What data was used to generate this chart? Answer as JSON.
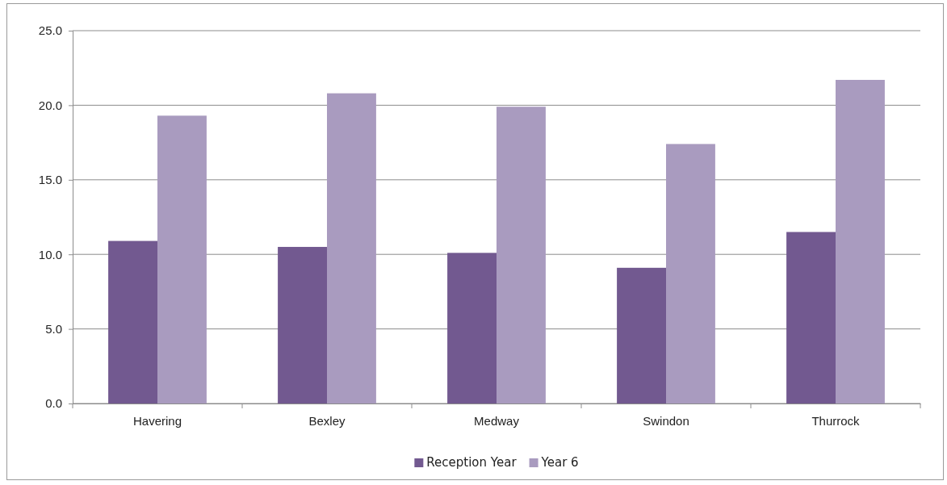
{
  "chart_data": {
    "type": "bar",
    "categories": [
      "Havering",
      "Bexley",
      "Medway",
      "Swindon",
      "Thurrock"
    ],
    "series": [
      {
        "name": "Reception Year",
        "color": "#725990",
        "values": [
          10.9,
          10.5,
          10.1,
          9.1,
          11.5
        ]
      },
      {
        "name": "Year 6",
        "color": "#a99bbf",
        "values": [
          19.3,
          20.8,
          19.9,
          17.4,
          21.7
        ]
      }
    ],
    "ylim": [
      0,
      25
    ],
    "yticks": [
      {
        "value": 0,
        "label": "0.0"
      },
      {
        "value": 5,
        "label": "5.0"
      },
      {
        "value": 10,
        "label": "10.0"
      },
      {
        "value": 15,
        "label": "15.0"
      },
      {
        "value": 20,
        "label": "20.0"
      },
      {
        "value": 25,
        "label": "25.0"
      }
    ],
    "grid": "y",
    "legend": "bottom"
  }
}
